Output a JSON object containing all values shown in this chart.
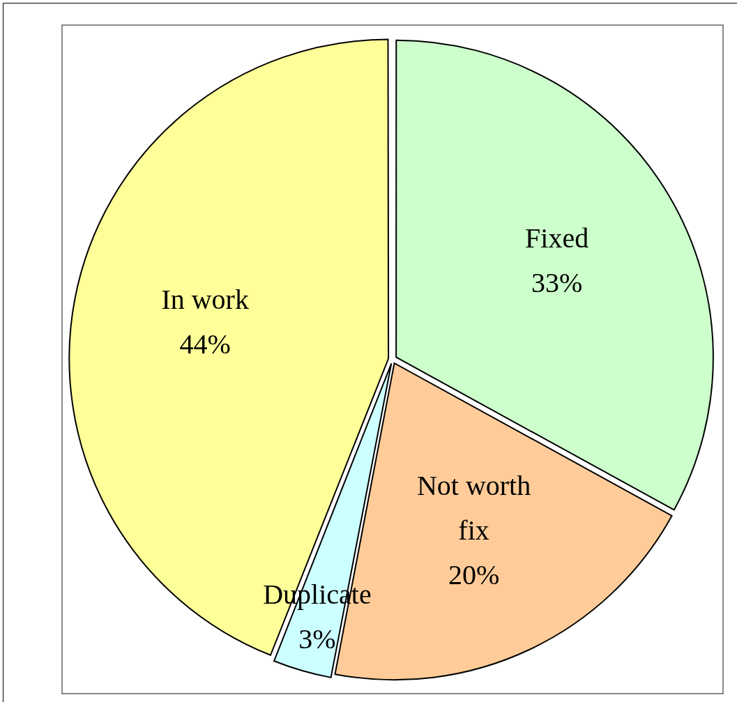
{
  "chart_data": {
    "type": "pie",
    "categories": [
      "Fixed",
      "Not worth fix",
      "Duplicate",
      "In work"
    ],
    "values": [
      33,
      20,
      3,
      44
    ],
    "colors": [
      "#ccffcc",
      "#ffcc99",
      "#ccffff",
      "#ffff99"
    ],
    "value_labels": [
      "33%",
      "20%",
      "3%",
      "44%"
    ],
    "legend": false
  }
}
